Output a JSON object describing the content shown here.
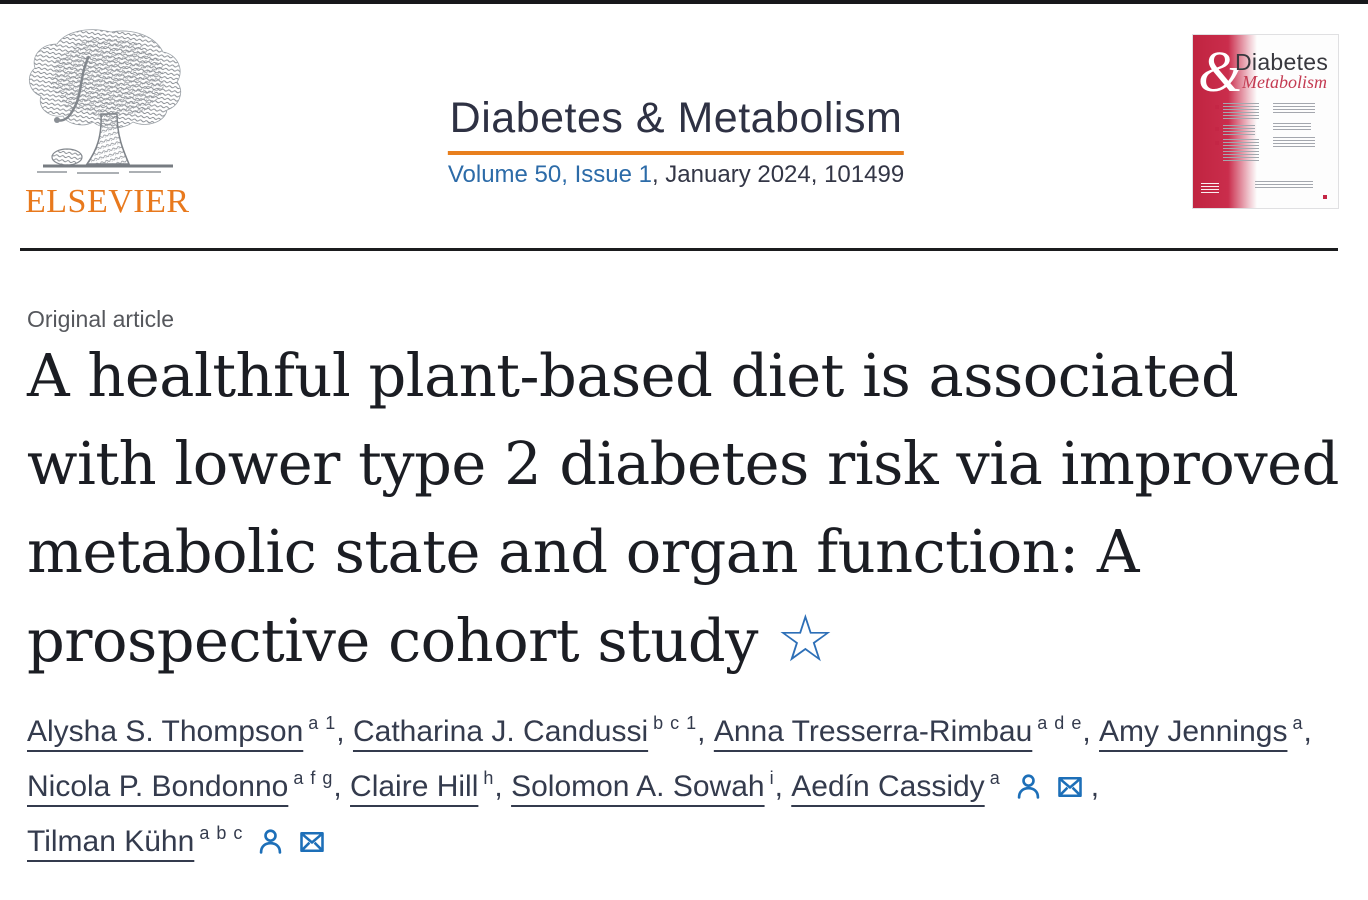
{
  "page": {
    "publisher": "ELSEVIER",
    "journal_title": "Diabetes & Metabolism",
    "issue_link": "Volume 50, Issue 1",
    "issue_rest": ", January 2024, 101499",
    "article_type": "Original article",
    "title": "A healthful plant-based diet is associated with lower type 2 diabetes risk via improved metabolic state and organ function: A prospective cohort study",
    "title_star": "☆"
  },
  "cover": {
    "amp": "&",
    "line1": "Diabetes",
    "line2": "Metabolism"
  },
  "colors": {
    "accent_orange": "#e87f1e",
    "link_blue": "#2c6ba8",
    "icon_blue": "#1d6fb8",
    "author_ink": "#343b4d",
    "title_ink": "#1b1d23",
    "cover_red": "#c42645"
  },
  "authors": [
    {
      "name": "Alysha S. Thompson",
      "sup": "a 1",
      "trail": ", "
    },
    {
      "name": "Catharina J. Candussi",
      "sup": "b c 1",
      "trail": ", "
    },
    {
      "name": "Anna Tresserra-Rimbau",
      "sup": "a d e",
      "trail": ", "
    },
    {
      "name": "Amy Jennings",
      "sup": "a",
      "trail": ", "
    },
    {
      "name": "Nicola P. Bondonno",
      "sup": "a f g",
      "trail": ", "
    },
    {
      "name": "Claire Hill",
      "sup": "h",
      "trail": ", "
    },
    {
      "name": "Solomon A. Sowah",
      "sup": "i",
      "trail": ", "
    },
    {
      "name": "Aedín Cassidy",
      "sup": "a",
      "icons": [
        "person",
        "envelope"
      ],
      "trail": ", "
    },
    {
      "name": "Tilman Kühn",
      "sup": "a b c",
      "icons": [
        "person",
        "envelope"
      ],
      "trail": ""
    }
  ]
}
